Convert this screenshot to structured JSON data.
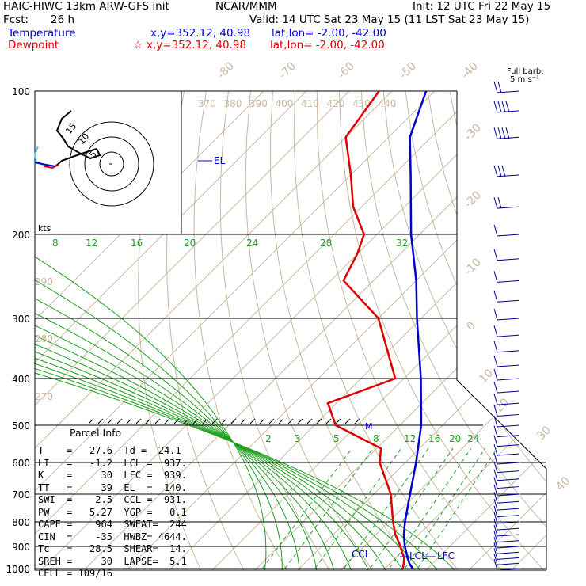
{
  "header": {
    "model": "HAIC-HIWC 13km ARW-GFS init",
    "org": "NCAR/MMM",
    "init": "Init: 12 UTC Fri 22 May 15",
    "fcst_label": "Fcst:",
    "fcst_value": "26 h",
    "valid": "Valid: 14 UTC Sat 23 May 15 (11 LST Sat 23 May 15)",
    "temp_label": "Temperature",
    "temp_loc": "x,y=352.12, 40.98",
    "temp_latlon": "lat,lon= -2.00, -42.00",
    "dew_label": "Dewpoint",
    "dew_marker": "☆",
    "dew_loc": "x,y=352.12, 40.98",
    "dew_latlon": "lat,lon= -2.00, -42.00"
  },
  "barb_legend": {
    "line1": "Full barb:",
    "line2": "5 m s⁻¹"
  },
  "hodograph": {
    "units": "kts",
    "ring_labels": [
      "5",
      "10",
      "15"
    ]
  },
  "parcel_info": {
    "title": "Parcel Info",
    "rows": [
      "T    =   27.6  Td =  24.1",
      "LI   =   -1.2  LCL =  937.",
      "K    =     30  LFC =  939.",
      "TT   =     39  EL  =  140.",
      "SWI  =    2.5  CCL =  931.",
      "PW   =   5.27  YGP =   0.1",
      "CAPE =    964  SWEAT=  244",
      "CIN  =    -35  HWBZ= 4644.",
      "Tc   =   28.5  SHEAR=  14.",
      "SREH =     30  LAPSE=  5.1",
      "CELL = 109/16"
    ]
  },
  "level_labels": {
    "el": "EL",
    "ccl": "CCL",
    "lcl": "LCL",
    "lfc": "LFC",
    "m": "M"
  },
  "chart_data": {
    "type": "line",
    "title": "",
    "pressure_levels_hPa": [
      100,
      200,
      300,
      400,
      500,
      600,
      700,
      800,
      900,
      1000
    ],
    "isotherm_labels_C": [
      "-80",
      "-70",
      "-60",
      "-50",
      "-40",
      "-30",
      "-20",
      "-10",
      "0",
      "10",
      "20",
      "30",
      "40"
    ],
    "theta_labels_K": [
      "370",
      "380",
      "390",
      "400",
      "410",
      "420",
      "430",
      "440"
    ],
    "dry_adiabat_labels_K": [
      "290",
      "280",
      "270"
    ],
    "moist_adiabat_labels_C": [
      "8",
      "12",
      "16",
      "20",
      "24",
      "28",
      "32"
    ],
    "mixing_ratio_labels_gkg": [
      "2",
      "3",
      "5",
      "8",
      "12",
      "16",
      "20",
      "24"
    ],
    "series": [
      {
        "color": "#0000cc",
        "points": [
          [
            1000,
            26.5
          ],
          [
            975,
            24.5
          ],
          [
            950,
            22.8
          ],
          [
            925,
            21.2
          ],
          [
            900,
            19.5
          ],
          [
            850,
            16.5
          ],
          [
            800,
            13.8
          ],
          [
            700,
            8.5
          ],
          [
            600,
            2.5
          ],
          [
            500,
            -5.0
          ],
          [
            400,
            -16.0
          ],
          [
            300,
            -31.0
          ],
          [
            250,
            -40.0
          ],
          [
            200,
            -52.0
          ],
          [
            150,
            -66.0
          ],
          [
            125,
            -75.0
          ],
          [
            100,
            -82.0
          ]
        ]
      },
      {
        "color": "#dd0000",
        "points": [
          [
            1000,
            24.2
          ],
          [
            975,
            23.2
          ],
          [
            950,
            22.0
          ],
          [
            925,
            20.2
          ],
          [
            900,
            18.5
          ],
          [
            850,
            14.5
          ],
          [
            800,
            11.0
          ],
          [
            700,
            4.0
          ],
          [
            600,
            -6.0
          ],
          [
            560,
            -9.0
          ],
          [
            500,
            -25.0
          ],
          [
            450,
            -32.0
          ],
          [
            400,
            -22.0
          ],
          [
            300,
            -40.0
          ],
          [
            250,
            -57.0
          ],
          [
            220,
            -60.0
          ],
          [
            200,
            -63.0
          ],
          [
            175,
            -72.0
          ],
          [
            150,
            -80.0
          ],
          [
            125,
            -90.0
          ],
          [
            100,
            -93.0
          ]
        ]
      }
    ],
    "wind_barbs": [
      {
        "p": 1000,
        "spd_ms": 5
      },
      {
        "p": 975,
        "spd_ms": 5
      },
      {
        "p": 950,
        "spd_ms": 5
      },
      {
        "p": 925,
        "spd_ms": 5
      },
      {
        "p": 900,
        "spd_ms": 5
      },
      {
        "p": 875,
        "spd_ms": 5
      },
      {
        "p": 850,
        "spd_ms": 5
      },
      {
        "p": 825,
        "spd_ms": 5
      },
      {
        "p": 800,
        "spd_ms": 5
      },
      {
        "p": 775,
        "spd_ms": 5
      },
      {
        "p": 750,
        "spd_ms": 5
      },
      {
        "p": 725,
        "spd_ms": 5
      },
      {
        "p": 700,
        "spd_ms": 5
      },
      {
        "p": 675,
        "spd_ms": 5
      },
      {
        "p": 650,
        "spd_ms": 5
      },
      {
        "p": 625,
        "spd_ms": 5
      },
      {
        "p": 600,
        "spd_ms": 5
      },
      {
        "p": 575,
        "spd_ms": 5
      },
      {
        "p": 550,
        "spd_ms": 5
      },
      {
        "p": 525,
        "spd_ms": 5
      },
      {
        "p": 500,
        "spd_ms": 5
      },
      {
        "p": 475,
        "spd_ms": 5
      },
      {
        "p": 450,
        "spd_ms": 5
      },
      {
        "p": 425,
        "spd_ms": 5
      },
      {
        "p": 400,
        "spd_ms": 5
      },
      {
        "p": 375,
        "spd_ms": 5
      },
      {
        "p": 350,
        "spd_ms": 5
      },
      {
        "p": 325,
        "spd_ms": 5
      },
      {
        "p": 300,
        "spd_ms": 5
      },
      {
        "p": 275,
        "spd_ms": 5
      },
      {
        "p": 250,
        "spd_ms": 5
      },
      {
        "p": 225,
        "spd_ms": 5
      },
      {
        "p": 200,
        "spd_ms": 5
      },
      {
        "p": 175,
        "spd_ms": 10
      },
      {
        "p": 150,
        "spd_ms": 15
      },
      {
        "p": 125,
        "spd_ms": 20
      },
      {
        "p": 110,
        "spd_ms": 20
      },
      {
        "p": 100,
        "spd_ms": 10
      }
    ],
    "colors": {
      "temperature": "#0000cc",
      "dewpoint": "#dd0000",
      "isotherm": "#c8b8a0",
      "moist": "#20a020",
      "mixing": "#20a020",
      "isobar": "#000000"
    }
  }
}
